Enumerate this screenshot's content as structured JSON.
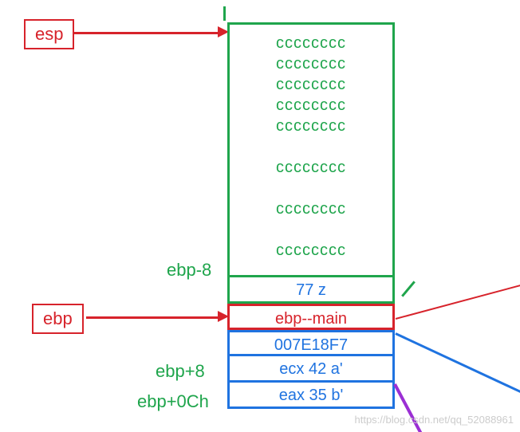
{
  "colors": {
    "red": "#d7232b",
    "green": "#1fa54c",
    "blue": "#1f73e0",
    "purple": "#9b2fd4"
  },
  "registers": {
    "esp": "esp",
    "ebp": "ebp"
  },
  "top_block": {
    "fill_rows": [
      "cccccccc",
      "cccccccc",
      "cccccccc",
      "cccccccc",
      "cccccccc",
      "",
      "cccccccc",
      "",
      "cccccccc",
      "",
      "cccccccc"
    ],
    "bottom_label": "ebp-8"
  },
  "rows": [
    {
      "text": "77   z",
      "border": "green",
      "color": "blue"
    },
    {
      "text": "ebp--main",
      "border": "red",
      "color": "red"
    },
    {
      "text": "007E18F7",
      "border": "blue",
      "color": "blue"
    },
    {
      "text": "ecx  42  a'",
      "border": "blue",
      "color": "blue",
      "left_label": "ebp+8"
    },
    {
      "text": "eax  35  b'",
      "border": "blue",
      "color": "blue",
      "left_label": "ebp+0Ch"
    }
  ],
  "watermark": "https://blog.csdn.net/qq_52088961"
}
